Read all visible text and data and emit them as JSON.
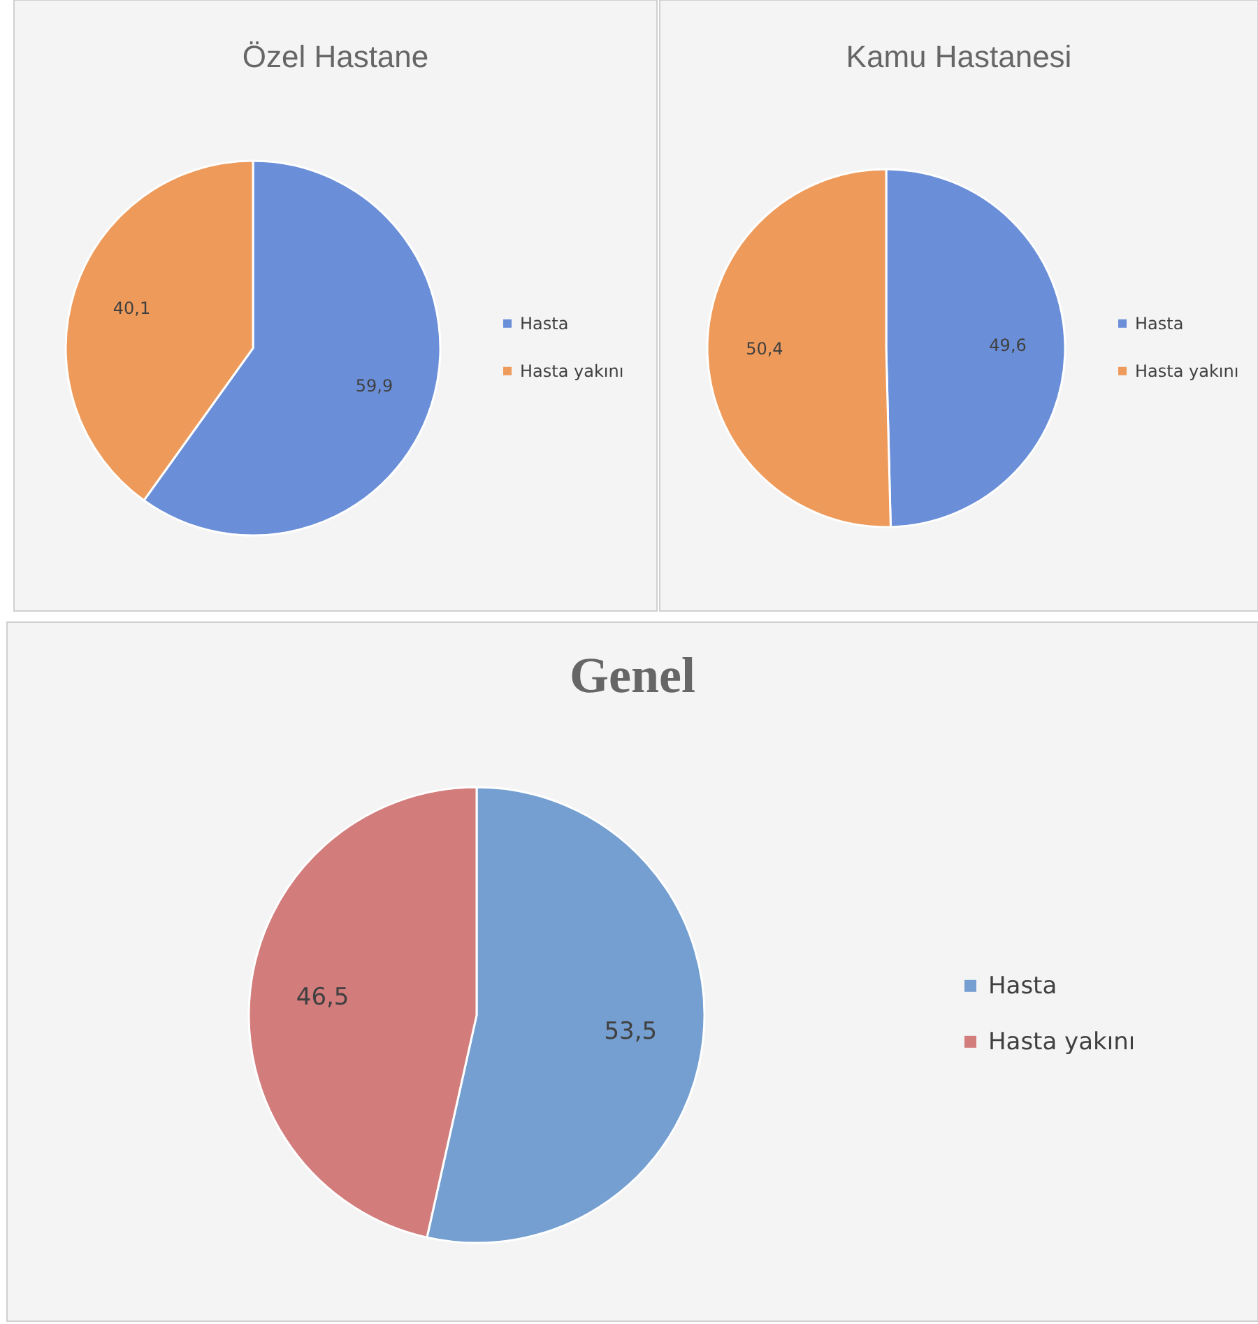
{
  "chart_data": [
    {
      "type": "pie",
      "title": "Özel Hastane",
      "categories": [
        "Hasta",
        "Hasta yakını"
      ],
      "values": [
        59.9,
        40.1
      ],
      "colors": [
        "#6a8fd8",
        "#ee9a5a"
      ],
      "value_labels": [
        "59,9",
        "40,1"
      ],
      "legend": "right"
    },
    {
      "type": "pie",
      "title": "Kamu Hastanesi",
      "categories": [
        "Hasta",
        "Hasta yakını"
      ],
      "values": [
        49.6,
        50.4
      ],
      "colors": [
        "#6a8fd8",
        "#ee9a5a"
      ],
      "value_labels": [
        "49,6",
        "50,4"
      ],
      "legend": "right"
    },
    {
      "type": "pie",
      "title": "Genel",
      "categories": [
        "Hasta",
        "Hasta yakını"
      ],
      "values": [
        53.5,
        46.5
      ],
      "colors": [
        "#749fd0",
        "#d27c7c"
      ],
      "value_labels": [
        "53,5",
        "46,5"
      ],
      "legend": "right"
    }
  ]
}
